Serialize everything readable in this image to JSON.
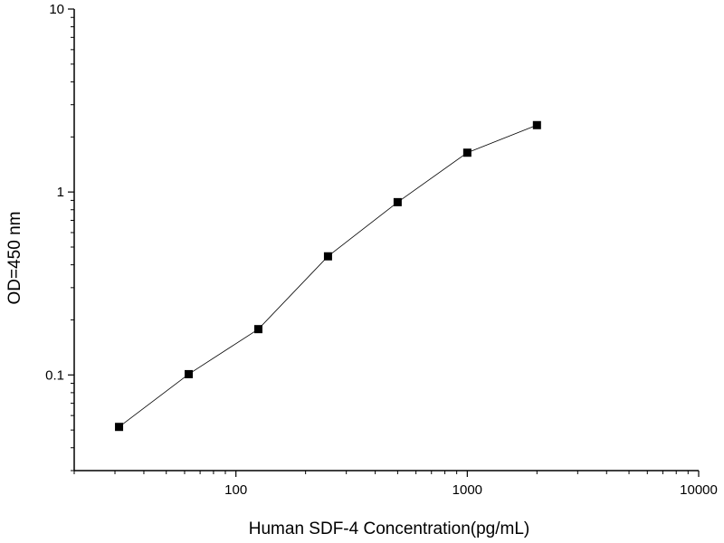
{
  "chart_data": {
    "type": "line",
    "title": "",
    "xlabel": "Human SDF-4 Concentration(pg/mL)",
    "ylabel": "OD=450 nm",
    "x_scale": "log",
    "y_scale": "log",
    "xlim": [
      20,
      10000
    ],
    "ylim": [
      0.03,
      10
    ],
    "x_ticks": [
      {
        "value": 100,
        "label": "100"
      },
      {
        "value": 1000,
        "label": "1000"
      },
      {
        "value": 10000,
        "label": "10000"
      }
    ],
    "y_ticks": [
      {
        "value": 0.1,
        "label": "0.1"
      },
      {
        "value": 1,
        "label": "1"
      },
      {
        "value": 10,
        "label": "10"
      }
    ],
    "grid": false,
    "marker": "square",
    "series": [
      {
        "x": [
          31.25,
          62.5,
          125,
          250,
          500,
          1000,
          2000
        ],
        "y": [
          0.052,
          0.101,
          0.178,
          0.445,
          0.88,
          1.64,
          2.32
        ],
        "color": "#000000"
      }
    ]
  }
}
